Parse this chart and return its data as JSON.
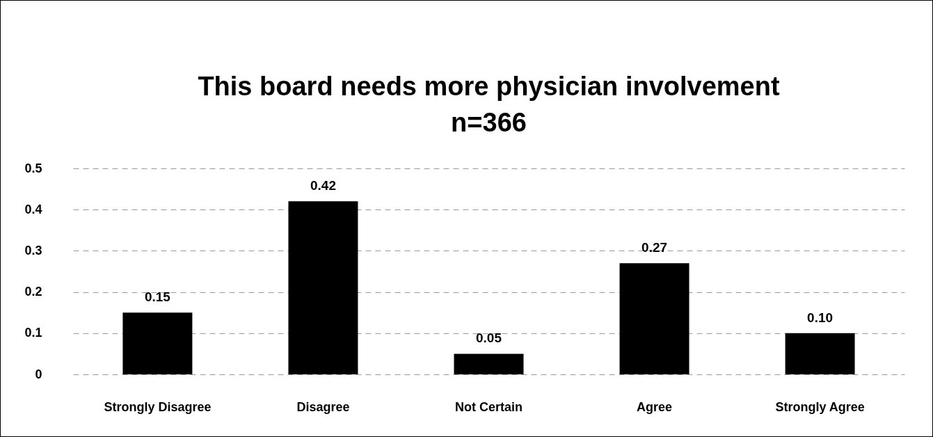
{
  "chart_data": {
    "type": "bar",
    "title": "This board needs more physician involvement",
    "subtitle": "n=366",
    "categories": [
      "Strongly Disagree",
      "Disagree",
      "Not Certain",
      "Agree",
      "Strongly Agree"
    ],
    "values": [
      0.15,
      0.42,
      0.05,
      0.27,
      0.1
    ],
    "color": "#000000",
    "value_labels": [
      "0.15",
      "0.42",
      "0.05",
      "0.27",
      "0.10"
    ],
    "ylim": [
      0,
      0.5
    ],
    "yticks": [
      0,
      0.1,
      0.2,
      0.3,
      0.4,
      0.5
    ],
    "grid": "y"
  }
}
